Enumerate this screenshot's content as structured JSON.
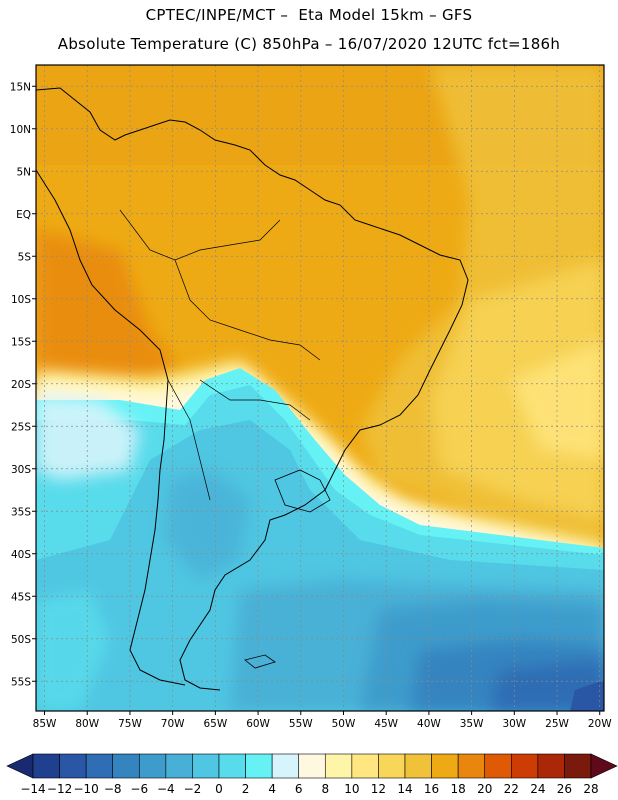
{
  "header": {
    "line1": "CPTEC/INPE/MCT –  Eta Model 15km – GFS",
    "line2": "Absolute Temperature (C) 850hPa – 16/07/2020 12UTC fct=186h"
  },
  "map": {
    "lat_labels": [
      "15N",
      "10N",
      "5N",
      "EQ",
      "5S",
      "10S",
      "15S",
      "20S",
      "25S",
      "30S",
      "35S",
      "40S",
      "45S",
      "50S",
      "55S"
    ],
    "lon_labels": [
      "85W",
      "80W",
      "75W",
      "70W",
      "65W",
      "60W",
      "55W",
      "50W",
      "45W",
      "40W",
      "35W",
      "30W",
      "25W",
      "20W"
    ],
    "region": "South America"
  },
  "colorbar": {
    "labels": [
      "-14",
      "-12",
      "-10",
      "-8",
      "-6",
      "-4",
      "-2",
      "0",
      "2",
      "4",
      "6",
      "8",
      "10",
      "12",
      "14",
      "16",
      "18",
      "20",
      "22",
      "24",
      "26",
      "28"
    ],
    "colors": [
      "#1f3f8f",
      "#2a56a6",
      "#2f6db4",
      "#3484c0",
      "#3e9ccc",
      "#48b0d6",
      "#4fc6e2",
      "#58dbeb",
      "#66f2f5",
      "#d6f4fb",
      "#fff8e0",
      "#fff5a8",
      "#ffe680",
      "#f8d65a",
      "#f0c23a",
      "#eeaa14",
      "#e8860e",
      "#e05a06",
      "#cc3c04",
      "#aa2808",
      "#7a1a0c"
    ],
    "low_arrow": "#1a2a70",
    "high_arrow": "#5e0a1a"
  },
  "palette": {
    "frame": "#000000",
    "grid": "#8a8a8a"
  }
}
